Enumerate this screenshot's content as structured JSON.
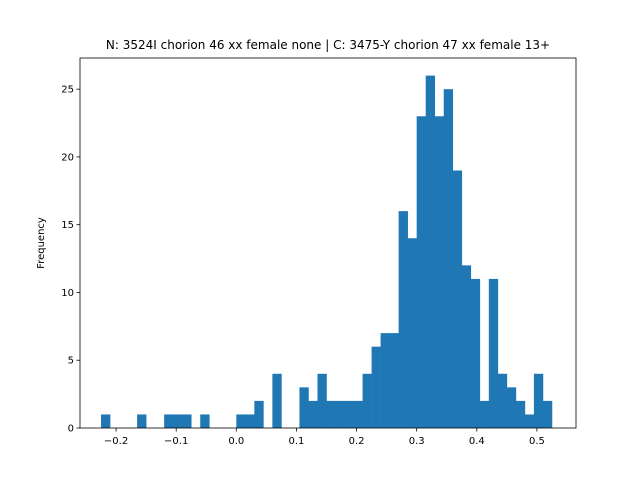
{
  "chart_data": {
    "type": "bar",
    "title": "N: 3524I chorion 46 xx female none | C: 3475-Y chorion 47 xx female 13+",
    "xlabel": "",
    "ylabel": "Frequency",
    "xlim": [
      -0.26,
      0.565
    ],
    "ylim": [
      0,
      27.3
    ],
    "grid": false,
    "bar_color": "#1f77b4",
    "bin_width": 0.015,
    "bin_starts": [
      -0.225,
      -0.21,
      -0.195,
      -0.18,
      -0.165,
      -0.15,
      -0.135,
      -0.12,
      -0.105,
      -0.09,
      -0.075,
      -0.06,
      -0.045,
      -0.03,
      -0.015,
      0.0,
      0.015,
      0.03,
      0.045,
      0.06,
      0.075,
      0.09,
      0.105,
      0.12,
      0.135,
      0.15,
      0.165,
      0.18,
      0.195,
      0.21,
      0.225,
      0.24,
      0.255,
      0.27,
      0.285,
      0.3,
      0.315,
      0.33,
      0.345,
      0.36,
      0.375,
      0.39,
      0.405,
      0.42,
      0.435,
      0.45,
      0.465,
      0.48,
      0.495,
      0.51
    ],
    "values": [
      1,
      0,
      0,
      0,
      1,
      0,
      0,
      1,
      1,
      1,
      0,
      1,
      0,
      0,
      0,
      1,
      1,
      2,
      0,
      4,
      0,
      0,
      3,
      2,
      4,
      2,
      2,
      2,
      2,
      4,
      6,
      7,
      7,
      16,
      14,
      23,
      26,
      23,
      25,
      19,
      12,
      11,
      2,
      11,
      4,
      3,
      2,
      1,
      4,
      2
    ],
    "x_ticks": [
      -0.2,
      -0.1,
      0.0,
      0.1,
      0.2,
      0.3,
      0.4,
      0.5
    ],
    "x_tick_labels": [
      "−0.2",
      "−0.1",
      "0.0",
      "0.1",
      "0.2",
      "0.3",
      "0.4",
      "0.5"
    ],
    "y_ticks": [
      0,
      5,
      10,
      15,
      20,
      25
    ],
    "y_tick_labels": [
      "0",
      "5",
      "10",
      "15",
      "20",
      "25"
    ]
  }
}
